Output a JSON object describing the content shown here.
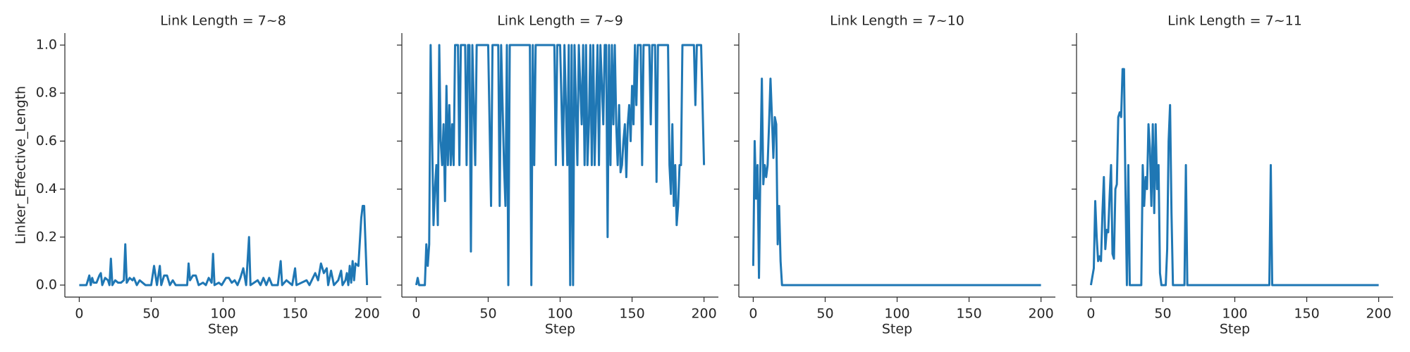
{
  "chart_data": [
    {
      "type": "line",
      "title": "Link Length = 7~8",
      "xlabel": "Step",
      "ylabel": "Linker_Effective_Length",
      "color": "#1f77b4",
      "xlim": [
        -10,
        210
      ],
      "ylim": [
        -0.05,
        1.05
      ],
      "xticks": [
        0,
        50,
        100,
        150,
        200
      ],
      "yticks": [
        {
          "value": 0,
          "label": "0.0"
        },
        {
          "value": 0.2,
          "label": "0.2"
        },
        {
          "value": 0.4,
          "label": "0.4"
        },
        {
          "value": 0.6,
          "label": "0.6"
        },
        {
          "value": 0.8,
          "label": "0.8"
        },
        {
          "value": 1,
          "label": "1.0"
        }
      ],
      "x": [
        0,
        5,
        6,
        7,
        8,
        9,
        10,
        12,
        14,
        15,
        16,
        18,
        20,
        21,
        22,
        23,
        25,
        27,
        29,
        31,
        32,
        33,
        35,
        37,
        38,
        40,
        42,
        44,
        46,
        50,
        52,
        54,
        56,
        57,
        59,
        61,
        63,
        65,
        67,
        75,
        76,
        77,
        79,
        81,
        83,
        86,
        88,
        90,
        92,
        93,
        94,
        97,
        99,
        102,
        104,
        106,
        108,
        110,
        112,
        114,
        116,
        118,
        119,
        124,
        126,
        128,
        130,
        132,
        134,
        138,
        140,
        141,
        144,
        146,
        148,
        150,
        151,
        158,
        160,
        164,
        166,
        168,
        170,
        172,
        173,
        175,
        177,
        180,
        182,
        183,
        185,
        186,
        187,
        188,
        189,
        190,
        191,
        192,
        194,
        196,
        197,
        198,
        200
      ],
      "values": [
        0,
        0,
        0.02,
        0.04,
        0,
        0.03,
        0.01,
        0.01,
        0.04,
        0.05,
        0,
        0.03,
        0.02,
        0,
        0.11,
        0,
        0.02,
        0.01,
        0.01,
        0.02,
        0.17,
        0.01,
        0.03,
        0.02,
        0.03,
        0,
        0.02,
        0.01,
        0,
        0,
        0.08,
        0,
        0.08,
        0,
        0.04,
        0.04,
        0,
        0.02,
        0,
        0,
        0.09,
        0.02,
        0.04,
        0.04,
        0,
        0.01,
        0,
        0.03,
        0.01,
        0.13,
        0,
        0.01,
        0,
        0.03,
        0.03,
        0.01,
        0.02,
        0,
        0.03,
        0.07,
        0,
        0.2,
        0,
        0.02,
        0,
        0.03,
        0,
        0.03,
        0,
        0,
        0.1,
        0,
        0.02,
        0.01,
        0,
        0.07,
        0,
        0.02,
        0,
        0.05,
        0.02,
        0.09,
        0.05,
        0.07,
        0,
        0.06,
        0,
        0.02,
        0.06,
        0,
        0.02,
        0.05,
        0,
        0.08,
        0.01,
        0.1,
        0.02,
        0.09,
        0.08,
        0.28,
        0.33,
        0.33,
        0
      ]
    },
    {
      "type": "line",
      "title": "Link Length = 7~9",
      "xlabel": "Step",
      "color": "#1f77b4",
      "xlim": [
        -10,
        210
      ],
      "ylim": [
        -0.05,
        1.05
      ],
      "xticks": [
        0,
        50,
        100,
        150,
        200
      ],
      "x": [
        0,
        1,
        2,
        6,
        7,
        8,
        9,
        10,
        12,
        13,
        14,
        15,
        16,
        17,
        18,
        19,
        20,
        21,
        22,
        23,
        24,
        25,
        26,
        27,
        29,
        30,
        31,
        34,
        35,
        36,
        37,
        38,
        39,
        41,
        42,
        49,
        50,
        52,
        53,
        55,
        57,
        58,
        59,
        61,
        62,
        63,
        64,
        65,
        70,
        75,
        79,
        80,
        81,
        82,
        83,
        90,
        96,
        97,
        98,
        100,
        102,
        103,
        105,
        106,
        107,
        108,
        109,
        110,
        112,
        113,
        115,
        116,
        117,
        118,
        119,
        120,
        121,
        122,
        123,
        124,
        125,
        126,
        127,
        128,
        130,
        131,
        132,
        133,
        134,
        135,
        136,
        137,
        138,
        139,
        140,
        141,
        142,
        143,
        144,
        145,
        146,
        147,
        148,
        149,
        150,
        151,
        152,
        153,
        154,
        156,
        157,
        158,
        162,
        163,
        164,
        166,
        167,
        168,
        174,
        175,
        176,
        177,
        178,
        179,
        180,
        181,
        182,
        183,
        184,
        185,
        193,
        194,
        195,
        198,
        200
      ],
      "values": [
        0,
        0.03,
        0,
        0,
        0.17,
        0.08,
        0.17,
        1,
        0.25,
        0.4,
        0.5,
        0.25,
        1,
        0.6,
        0.5,
        0.67,
        0.35,
        0.83,
        0.5,
        0.75,
        0.5,
        0.67,
        0.5,
        1,
        1,
        0.5,
        1,
        1,
        0.5,
        1,
        1,
        0.14,
        1,
        0.5,
        1,
        1,
        1,
        0.33,
        1,
        1,
        1,
        0.33,
        1,
        0.5,
        0.33,
        1,
        0,
        1,
        1,
        1,
        1,
        0,
        1,
        0.5,
        1,
        1,
        1,
        0.5,
        1,
        1,
        0.5,
        1,
        0.5,
        1,
        0,
        1,
        0,
        1,
        0.5,
        1,
        0.67,
        1,
        0.5,
        1,
        0.5,
        0.67,
        1,
        0.5,
        1,
        0.5,
        0.75,
        1,
        0.5,
        1,
        0.67,
        1,
        1,
        0.2,
        1,
        0.5,
        1,
        0.67,
        1,
        0.67,
        0.5,
        0.75,
        0.47,
        0.5,
        0.6,
        0.67,
        0.45,
        0.67,
        0.75,
        0.6,
        0.83,
        0.67,
        1,
        0.75,
        1,
        1,
        0.5,
        1,
        1,
        0.67,
        1,
        1,
        0.43,
        1,
        1,
        1,
        0.5,
        0.38,
        0.67,
        0.33,
        0.5,
        0.25,
        0.33,
        0.5,
        0.5,
        1,
        1,
        0.75,
        1,
        1,
        0.5
      ]
    },
    {
      "type": "line",
      "title": "Link Length = 7~10",
      "xlabel": "Step",
      "color": "#1f77b4",
      "xlim": [
        -10,
        210
      ],
      "ylim": [
        -0.05,
        1.05
      ],
      "xticks": [
        0,
        50,
        100,
        150,
        200
      ],
      "x": [
        0,
        1,
        2,
        3,
        4,
        5,
        6,
        7,
        8,
        9,
        10,
        11,
        12,
        13,
        14,
        15,
        16,
        17,
        18,
        19,
        20,
        200
      ],
      "values": [
        0.08,
        0.6,
        0.36,
        0.5,
        0.03,
        0.5,
        0.86,
        0.42,
        0.5,
        0.45,
        0.5,
        0.67,
        0.86,
        0.7,
        0.53,
        0.7,
        0.67,
        0.17,
        0.33,
        0.1,
        0,
        0
      ]
    },
    {
      "type": "line",
      "title": "Link Length = 7~11",
      "xlabel": "Step",
      "color": "#1f77b4",
      "xlim": [
        -10,
        210
      ],
      "ylim": [
        -0.05,
        1.05
      ],
      "xticks": [
        0,
        50,
        100,
        150,
        200
      ],
      "x": [
        0,
        2,
        3,
        4,
        5,
        6,
        7,
        8,
        9,
        10,
        11,
        12,
        13,
        14,
        15,
        16,
        17,
        18,
        19,
        20,
        21,
        22,
        23,
        24,
        25,
        26,
        27,
        35,
        36,
        37,
        38,
        39,
        40,
        41,
        42,
        43,
        44,
        45,
        46,
        47,
        48,
        49,
        52,
        53,
        54,
        55,
        56,
        57,
        65,
        66,
        67,
        124,
        125,
        126,
        200
      ],
      "values": [
        0,
        0.07,
        0.35,
        0.2,
        0.1,
        0.12,
        0.1,
        0.3,
        0.45,
        0.15,
        0.23,
        0.22,
        0.37,
        0.5,
        0.13,
        0.11,
        0.4,
        0.42,
        0.7,
        0.72,
        0.7,
        0.9,
        0.9,
        0.4,
        0,
        0.5,
        0,
        0,
        0.5,
        0.33,
        0.45,
        0.4,
        0.67,
        0.57,
        0.33,
        0.67,
        0.3,
        0.67,
        0.4,
        0.5,
        0.05,
        0,
        0,
        0.15,
        0.6,
        0.75,
        0.3,
        0,
        0,
        0.5,
        0,
        0,
        0.5,
        0,
        0
      ]
    }
  ]
}
